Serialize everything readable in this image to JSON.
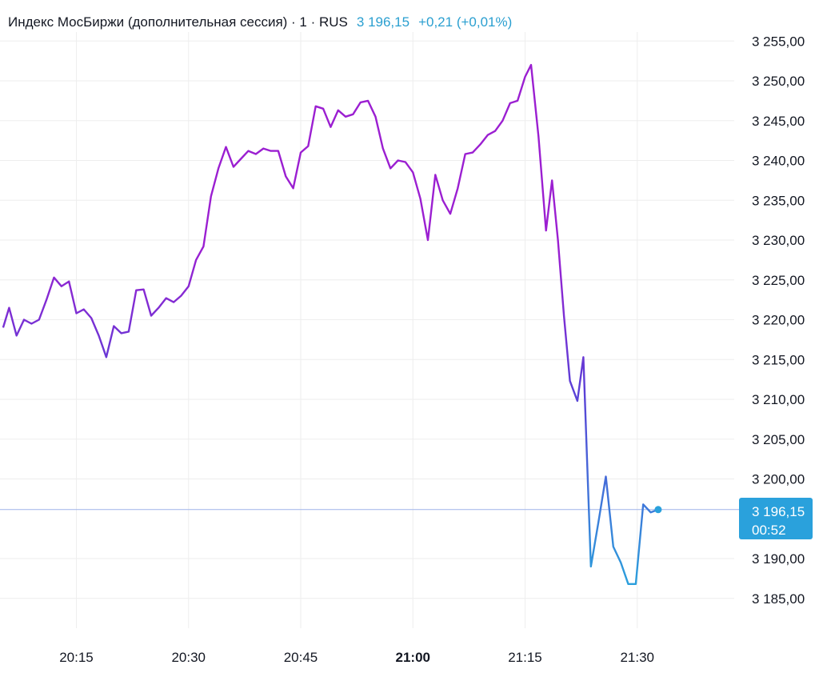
{
  "header": {
    "title": "Индекс МосБиржи (дополнительная сессия) · 1 · RUS",
    "last_price": "3 196,15",
    "change": "+0,21 (+0,01%)"
  },
  "price_label": {
    "price": "3 196,15",
    "countdown": "00:52"
  },
  "colors": {
    "line_start": "#5b3fd6",
    "line_mid": "#9b1fd1",
    "line_end": "#2aa1dc",
    "grid": "#eeeeee",
    "current_line": "#9fb3ea",
    "header_accent": "#2a9fd0"
  },
  "chart_data": {
    "type": "line",
    "title": "Индекс МосБиржи (дополнительная сессия)",
    "xlabel": "",
    "ylabel": "",
    "ylim": [
      3181,
      3260
    ],
    "x_ticks": [
      {
        "minute": 15,
        "label": "20:15",
        "bold": false
      },
      {
        "minute": 30,
        "label": "20:30",
        "bold": false
      },
      {
        "minute": 45,
        "label": "20:45",
        "bold": false
      },
      {
        "minute": 60,
        "label": "21:00",
        "bold": true
      },
      {
        "minute": 75,
        "label": "21:15",
        "bold": false
      },
      {
        "minute": 90,
        "label": "21:30",
        "bold": false
      }
    ],
    "y_ticks": [
      {
        "value": 3255,
        "label": "3 255,00"
      },
      {
        "value": 3250,
        "label": "3 250,00"
      },
      {
        "value": 3245,
        "label": "3 245,00"
      },
      {
        "value": 3240,
        "label": "3 240,00"
      },
      {
        "value": 3235,
        "label": "3 235,00"
      },
      {
        "value": 3230,
        "label": "3 230,00"
      },
      {
        "value": 3225,
        "label": "3 225,00"
      },
      {
        "value": 3220,
        "label": "3 220,00"
      },
      {
        "value": 3215,
        "label": "3 215,00"
      },
      {
        "value": 3210,
        "label": "3 210,00"
      },
      {
        "value": 3205,
        "label": "3 205,00"
      },
      {
        "value": 3200,
        "label": "3 200,00"
      },
      {
        "value": 3190,
        "label": "3 190,00"
      },
      {
        "value": 3185,
        "label": "3 185,00"
      }
    ],
    "current_value": 3196.15,
    "series": [
      {
        "values": [
          [
            5.2,
            3219.0
          ],
          [
            6.0,
            3221.5
          ],
          [
            7.0,
            3218.0
          ],
          [
            8.0,
            3220.0
          ],
          [
            9.0,
            3219.5
          ],
          [
            10.0,
            3220.0
          ],
          [
            11.0,
            3222.5
          ],
          [
            12.0,
            3225.3
          ],
          [
            13.0,
            3224.2
          ],
          [
            14.0,
            3224.8
          ],
          [
            15.0,
            3220.8
          ],
          [
            16.0,
            3221.3
          ],
          [
            17.0,
            3220.2
          ],
          [
            18.0,
            3218.0
          ],
          [
            19.0,
            3215.3
          ],
          [
            20.0,
            3219.2
          ],
          [
            21.0,
            3218.3
          ],
          [
            22.0,
            3218.5
          ],
          [
            23.0,
            3223.7
          ],
          [
            24.0,
            3223.8
          ],
          [
            25.0,
            3220.5
          ],
          [
            26.0,
            3221.5
          ],
          [
            27.0,
            3222.7
          ],
          [
            28.0,
            3222.2
          ],
          [
            29.0,
            3223.0
          ],
          [
            30.0,
            3224.2
          ],
          [
            31.0,
            3227.5
          ],
          [
            32.0,
            3229.2
          ],
          [
            33.0,
            3235.5
          ],
          [
            34.0,
            3239.0
          ],
          [
            35.0,
            3241.7
          ],
          [
            36.0,
            3239.2
          ],
          [
            37.0,
            3240.2
          ],
          [
            38.0,
            3241.2
          ],
          [
            39.0,
            3240.8
          ],
          [
            40.0,
            3241.5
          ],
          [
            41.0,
            3241.2
          ],
          [
            42.0,
            3241.2
          ],
          [
            43.0,
            3238.0
          ],
          [
            44.0,
            3236.5
          ],
          [
            45.0,
            3241.0
          ],
          [
            46.0,
            3241.8
          ],
          [
            47.0,
            3246.8
          ],
          [
            48.0,
            3246.5
          ],
          [
            49.0,
            3244.2
          ],
          [
            50.0,
            3246.3
          ],
          [
            51.0,
            3245.5
          ],
          [
            52.0,
            3245.8
          ],
          [
            53.0,
            3247.3
          ],
          [
            54.0,
            3247.5
          ],
          [
            55.0,
            3245.5
          ],
          [
            56.0,
            3241.5
          ],
          [
            57.0,
            3239.0
          ],
          [
            58.0,
            3240.0
          ],
          [
            59.0,
            3239.8
          ],
          [
            60.0,
            3238.5
          ],
          [
            61.0,
            3235.2
          ],
          [
            62.0,
            3230.0
          ],
          [
            63.0,
            3238.2
          ],
          [
            64.0,
            3235.0
          ],
          [
            65.0,
            3233.3
          ],
          [
            66.0,
            3236.5
          ],
          [
            67.0,
            3240.8
          ],
          [
            68.0,
            3241.0
          ],
          [
            69.0,
            3242.0
          ],
          [
            70.0,
            3243.2
          ],
          [
            71.0,
            3243.7
          ],
          [
            72.0,
            3245.0
          ],
          [
            73.0,
            3247.2
          ],
          [
            74.0,
            3247.5
          ],
          [
            75.0,
            3250.5
          ],
          [
            75.8,
            3252.0
          ],
          [
            76.8,
            3243.0
          ],
          [
            77.8,
            3231.2
          ],
          [
            78.6,
            3237.5
          ],
          [
            79.4,
            3230.0
          ],
          [
            80.2,
            3220.5
          ],
          [
            81.0,
            3212.3
          ],
          [
            82.0,
            3209.8
          ],
          [
            82.8,
            3215.3
          ],
          [
            83.8,
            3189.0
          ],
          [
            84.8,
            3194.5
          ],
          [
            85.8,
            3200.3
          ],
          [
            86.8,
            3191.5
          ],
          [
            87.8,
            3189.5
          ],
          [
            88.8,
            3186.8
          ],
          [
            89.8,
            3186.8
          ],
          [
            90.8,
            3196.8
          ],
          [
            91.8,
            3195.8
          ],
          [
            92.8,
            3196.15
          ]
        ]
      }
    ]
  }
}
